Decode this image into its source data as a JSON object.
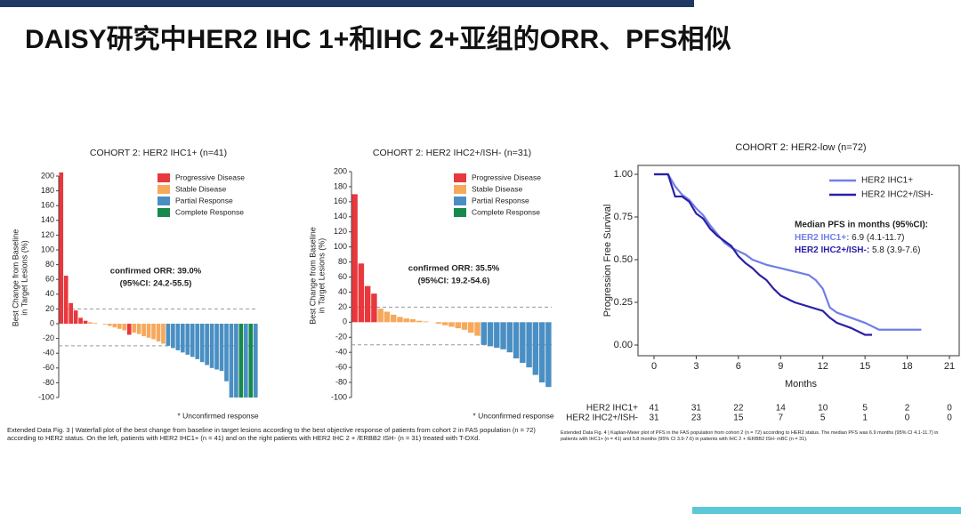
{
  "header": {
    "title": "DAISY研究中HER2 IHC 1+和IHC 2+亚组的ORR、PFS相似"
  },
  "chart_data": [
    {
      "type": "waterfall",
      "title": "COHORT 2: HER2 IHC1+ (n=41)",
      "ylabel": [
        "Best Change from Baseline",
        "in Target Lesions (%)"
      ],
      "ylim": [
        -100,
        200
      ],
      "yticks": [
        -100,
        -80,
        -60,
        -40,
        -20,
        0,
        20,
        40,
        60,
        80,
        100,
        120,
        140,
        160,
        180,
        200
      ],
      "ref_lines": [
        20,
        -30
      ],
      "series": [
        {
          "name": "Progressive Disease",
          "color": "#e8383d",
          "values": [
            205,
            65,
            28,
            18,
            8,
            4,
            null,
            null,
            null,
            null,
            null,
            null,
            null,
            null,
            -15,
            null,
            null,
            null,
            null,
            null,
            null,
            null,
            null,
            null,
            null,
            null,
            null,
            null,
            null,
            null,
            null,
            null,
            null,
            null,
            null,
            null,
            null,
            null,
            null,
            null,
            null
          ]
        },
        {
          "name": "Stable Disease",
          "color": "#f6a95c",
          "values": [
            null,
            null,
            null,
            null,
            null,
            null,
            2,
            1,
            0,
            -1,
            -3,
            -5,
            -7,
            -9,
            null,
            -12,
            -14,
            -17,
            -19,
            -21,
            -24,
            -27,
            null,
            null,
            null,
            null,
            null,
            null,
            null,
            null,
            null,
            null,
            null,
            null,
            null,
            null,
            null,
            null,
            null,
            null,
            null
          ]
        },
        {
          "name": "Partial Response",
          "color": "#4a8fc3",
          "values": [
            null,
            null,
            null,
            null,
            null,
            null,
            null,
            null,
            null,
            null,
            null,
            null,
            null,
            null,
            null,
            null,
            null,
            null,
            null,
            null,
            null,
            null,
            -30,
            -33,
            -36,
            -39,
            -42,
            -45,
            -48,
            -52,
            -56,
            -60,
            -62,
            -64,
            -78,
            -100,
            -100,
            null,
            -100,
            null,
            -100
          ]
        },
        {
          "name": "Complete Response",
          "color": "#17894a",
          "values": [
            null,
            null,
            null,
            null,
            null,
            null,
            null,
            null,
            null,
            null,
            null,
            null,
            null,
            null,
            null,
            null,
            null,
            null,
            null,
            null,
            null,
            null,
            null,
            null,
            null,
            null,
            null,
            null,
            null,
            null,
            null,
            null,
            null,
            null,
            null,
            null,
            null,
            -100,
            null,
            -100,
            null
          ]
        }
      ],
      "annotations": [
        "confirmed ORR: 39.0%",
        "(95%CI: 24.2-55.5)",
        "* Unconfirmed response"
      ]
    },
    {
      "type": "waterfall",
      "title": "COHORT 2: HER2 IHC2+/ISH- (n=31)",
      "ylabel": [
        "Best Change from Baseline",
        "in Target Lesions (%)"
      ],
      "ylim": [
        -100,
        200
      ],
      "yticks": [
        -100,
        -80,
        -60,
        -40,
        -20,
        0,
        20,
        40,
        60,
        80,
        100,
        120,
        140,
        160,
        180,
        200
      ],
      "ref_lines": [
        20,
        -30
      ],
      "series": [
        {
          "name": "Progressive Disease",
          "color": "#e8383d",
          "values": [
            170,
            78,
            48,
            38,
            null,
            null,
            null,
            null,
            null,
            null,
            null,
            null,
            null,
            null,
            null,
            null,
            null,
            null,
            null,
            null,
            null,
            null,
            null,
            null,
            null,
            null,
            null,
            null,
            null,
            null,
            null
          ]
        },
        {
          "name": "Stable Disease",
          "color": "#f6a95c",
          "values": [
            null,
            null,
            null,
            null,
            18,
            14,
            10,
            7,
            5,
            4,
            2,
            1,
            0,
            -2,
            -4,
            -6,
            -8,
            -10,
            -14,
            -18,
            null,
            null,
            null,
            null,
            null,
            null,
            null,
            null,
            null,
            null,
            null
          ]
        },
        {
          "name": "Partial Response",
          "color": "#4a8fc3",
          "values": [
            null,
            null,
            null,
            null,
            null,
            null,
            null,
            null,
            null,
            null,
            null,
            null,
            null,
            null,
            null,
            null,
            null,
            null,
            null,
            null,
            -30,
            -32,
            -34,
            -36,
            -40,
            -48,
            -54,
            -60,
            -70,
            -80,
            -86
          ]
        },
        {
          "name": "Complete Response",
          "color": "#17894a",
          "values": [
            null,
            null,
            null,
            null,
            null,
            null,
            null,
            null,
            null,
            null,
            null,
            null,
            null,
            null,
            null,
            null,
            null,
            null,
            null,
            null,
            null,
            null,
            null,
            null,
            null,
            null,
            null,
            null,
            null,
            null,
            null
          ]
        }
      ],
      "annotations": [
        "confirmed ORR: 35.5%",
        "(95%CI: 19.2-54.6)",
        "* Unconfirmed response"
      ]
    },
    {
      "type": "line",
      "title": "COHORT 2: HER2-low (n=72)",
      "xlabel": "Months",
      "ylabel": "Progression Free Survival",
      "xlim": [
        0,
        21
      ],
      "xticks": [
        0,
        3,
        6,
        9,
        12,
        15,
        18,
        21
      ],
      "ylim": [
        0,
        1
      ],
      "yticks": [
        {
          "value": 0,
          "label": "0.00"
        },
        0.25,
        {
          "value": 0.5,
          "label": "0.50"
        },
        0.75,
        {
          "value": 1,
          "label": "1.00"
        }
      ],
      "series": [
        {
          "name": "HER2 IHC1+",
          "color": "#6f7fe6",
          "x": [
            0,
            1,
            1.5,
            2,
            2.5,
            3,
            3.5,
            4,
            4.5,
            5,
            5.5,
            6,
            6.5,
            7,
            8,
            9,
            10,
            11,
            11.5,
            12,
            12.5,
            13,
            14,
            15,
            16,
            18,
            19
          ],
          "values": [
            1,
            1,
            0.93,
            0.88,
            0.85,
            0.8,
            0.76,
            0.7,
            0.65,
            0.6,
            0.57,
            0.55,
            0.53,
            0.5,
            0.47,
            0.45,
            0.43,
            0.41,
            0.38,
            0.33,
            0.22,
            0.19,
            0.16,
            0.13,
            0.09,
            0.09,
            0.09
          ]
        },
        {
          "name": "HER2 IHC2+/ISH-",
          "color": "#2a1fa8",
          "x": [
            0,
            1,
            1.5,
            2,
            2.5,
            3,
            3.5,
            4,
            4.5,
            5,
            5.5,
            6,
            6.5,
            7,
            7.5,
            8,
            8.5,
            9,
            10,
            12,
            12.5,
            13,
            14,
            15,
            15.5
          ],
          "values": [
            1,
            1,
            0.87,
            0.87,
            0.84,
            0.77,
            0.74,
            0.68,
            0.64,
            0.61,
            0.58,
            0.52,
            0.48,
            0.45,
            0.41,
            0.38,
            0.33,
            0.29,
            0.25,
            0.2,
            0.16,
            0.13,
            0.1,
            0.06,
            0.06
          ]
        }
      ],
      "median": {
        "title": "Median PFS in months (95%CI):",
        "rows": [
          {
            "label": "HER2 IHC1+:",
            "text": " 6.9 (4.1-11.7)"
          },
          {
            "label": "HER2 IHC2+/ISH-:",
            "text": " 5.8 (3.9-7.6)"
          }
        ]
      },
      "risk_table": [
        {
          "label": "HER2 IHC1+",
          "values": [
            41,
            31,
            22,
            14,
            10,
            5,
            2,
            0
          ]
        },
        {
          "label": "HER2 IHC2+/ISH-",
          "values": [
            31,
            23,
            15,
            7,
            5,
            1,
            0,
            0
          ]
        }
      ]
    }
  ],
  "captions": [
    "Extended Data Fig. 3 | Waterfall plot of the best change from baseline in target lesions according to the best objective response of patients from cohort 2 in FAS population (n = 72) according to HER2 status. On the left, patients with HER2 IHC1+ (n = 41) and on the right patients with HER2 IHC 2 + /ERBB2 ISH- (n = 31) treated with T-DXd.",
    "Extended Data Fig. 4 | Kaplan-Meier plot of PFS in the FAS population from cohort 2 (n = 72) according to HER2 status. The median PFS was 6.9 months (95% CI 4.1-11.7) in patients with IHC1+ (n = 41) and 5.8 months (95% CI 3.9-7.6) in patients with IHC 2 + /ERBB2 ISH- mBC (n = 31)."
  ]
}
